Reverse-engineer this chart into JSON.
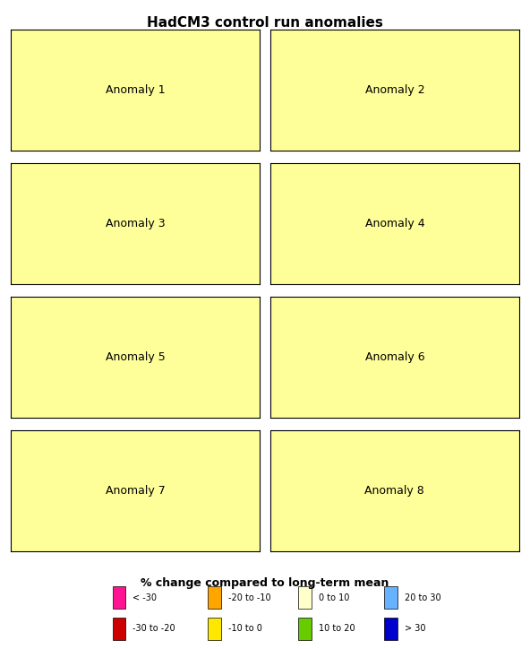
{
  "title": "HadCM3 control run anomalies",
  "subtitle": "% change compared to long-term mean",
  "anomaly_labels": [
    "Anomaly 1",
    "Anomaly 2",
    "Anomaly 3",
    "Anomaly 4",
    "Anomaly 5",
    "Anomaly 6",
    "Anomaly 7",
    "Anomaly 8"
  ],
  "legend_items": [
    {
      "color": "#FF69B4",
      "label": "< -30"
    },
    {
      "color": "#FF0000",
      "label": "-30 to -20"
    },
    {
      "color": "#FFA500",
      "label": "-20 to -10"
    },
    {
      "color": "#FFFF00",
      "label": "-10 to 0"
    },
    {
      "color": "#FFFFAA",
      "label": "0 to 10"
    },
    {
      "color": "#90EE90",
      "label": "10 to 20"
    },
    {
      "color": "#87CEEB",
      "label": "20 to 30"
    },
    {
      "color": "#00008B",
      "label": "> 30"
    }
  ],
  "legend_colors": {
    "lt_minus30": "#FF1493",
    "minus30_minus20": "#CC0000",
    "minus20_minus10": "#FFA500",
    "minus10_0": "#FFE800",
    "0_10": "#FFFFCC",
    "10_20": "#66CC00",
    "20_30": "#66B2FF",
    "gt30": "#0000CC"
  },
  "background_color": "#ffffff",
  "fig_width": 5.92,
  "fig_height": 7.24,
  "dpi": 100,
  "nrows": 4,
  "ncols": 2
}
